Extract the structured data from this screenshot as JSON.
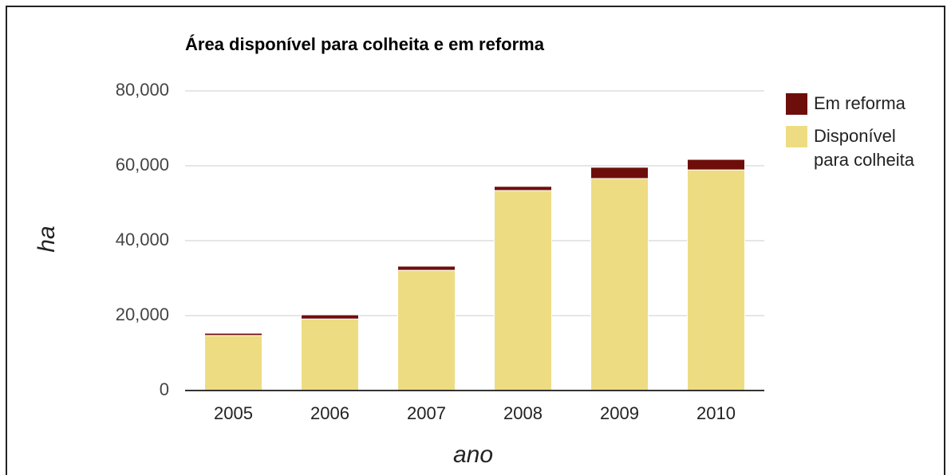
{
  "chart_data": {
    "type": "stacked_bar",
    "title": "Área disponível para colheita e em reforma",
    "x_label": "ano",
    "y_label": "ha",
    "categories": [
      "2005",
      "2006",
      "2007",
      "2008",
      "2009",
      "2010"
    ],
    "series": [
      {
        "name": "Em reforma",
        "color": "#6e0e0a",
        "values": [
          600,
          1100,
          1100,
          1100,
          3000,
          2800
        ]
      },
      {
        "name": "Disponível para colheita",
        "color": "#eedc82",
        "values": [
          14700,
          19100,
          32100,
          53400,
          56600,
          58900
        ]
      }
    ],
    "ylim": [
      0,
      80000
    ],
    "yticks": [
      0,
      {
        "value": 20000,
        "label": "20,000"
      },
      {
        "value": 40000,
        "label": "40,000"
      },
      {
        "value": 60000,
        "label": "60,000"
      },
      {
        "value": 80000,
        "label": "80,000"
      }
    ],
    "grid": true,
    "legend": "right"
  }
}
